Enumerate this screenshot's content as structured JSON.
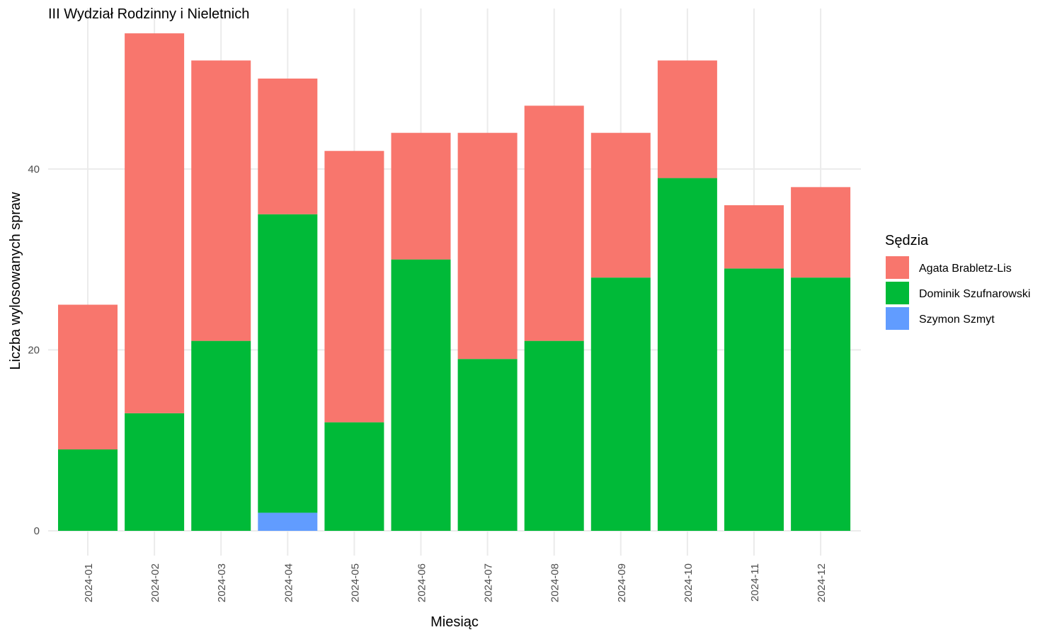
{
  "chart_data": {
    "type": "bar",
    "stacked": true,
    "title": "III Wydział Rodzinny i Nieletnich",
    "xlabel": "Miesiąc",
    "ylabel": "Liczba wylosowanych spraw",
    "categories": [
      "2024-01",
      "2024-02",
      "2024-03",
      "2024-04",
      "2024-05",
      "2024-06",
      "2024-07",
      "2024-08",
      "2024-09",
      "2024-10",
      "2024-11",
      "2024-12"
    ],
    "series": [
      {
        "name": "Agata Brabletz-Lis",
        "color": "#F8766D",
        "values": [
          16,
          42,
          31,
          15,
          30,
          14,
          25,
          26,
          16,
          13,
          7,
          10
        ]
      },
      {
        "name": "Dominik Szufnarowski",
        "color": "#00BA38",
        "values": [
          9,
          13,
          21,
          33,
          12,
          30,
          19,
          21,
          28,
          39,
          29,
          28
        ]
      },
      {
        "name": "Szymon Szmyt",
        "color": "#619CFF",
        "values": [
          0,
          0,
          0,
          2,
          0,
          0,
          0,
          0,
          0,
          0,
          0,
          0
        ]
      }
    ],
    "stack_order_bottom_to_top": [
      "Szymon Szmyt",
      "Dominik Szufnarowski",
      "Agata Brabletz-Lis"
    ],
    "ylim": [
      0,
      55
    ],
    "yticks": [
      0,
      20,
      40
    ],
    "xtick_rotation": 90,
    "grid": true,
    "legend": {
      "title": "Sędzia",
      "position": "right"
    }
  }
}
